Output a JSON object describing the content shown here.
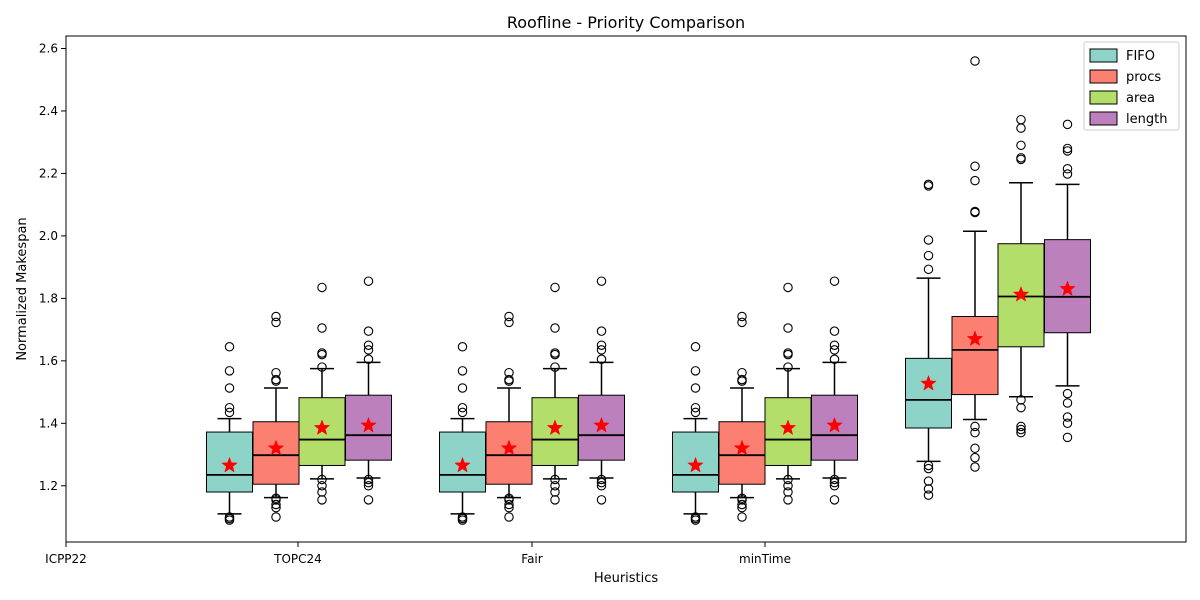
{
  "chart_data": {
    "type": "boxplot",
    "title": "Roofline - Priority Comparison",
    "xlabel": "Heuristics",
    "ylabel": "Normalized Makespan",
    "ylim": [
      1.02,
      2.64
    ],
    "yticks": [
      1.2,
      1.4,
      1.6,
      1.8,
      2.0,
      2.2,
      2.4,
      2.6
    ],
    "xtick_labels": [
      "ICPP22",
      "TOPC24",
      "Fair",
      "minTime"
    ],
    "legend_position": "top-right",
    "grid": false,
    "mean_marker": "red-star",
    "series": [
      {
        "name": "FIFO",
        "color": "#8dd3c7"
      },
      {
        "name": "procs",
        "color": "#fb8072"
      },
      {
        "name": "area",
        "color": "#b3de69"
      },
      {
        "name": "length",
        "color": "#bc80bd"
      }
    ],
    "groups": [
      {
        "boxes": [
          {
            "whisker_low": 1.11,
            "q1": 1.18,
            "median": 1.235,
            "q3": 1.372,
            "whisker_high": 1.415,
            "mean": 1.265,
            "outliers": [
              1.09,
              1.095,
              1.1,
              1.435,
              1.45,
              1.513,
              1.568,
              1.645
            ]
          },
          {
            "whisker_low": 1.162,
            "q1": 1.205,
            "median": 1.298,
            "q3": 1.405,
            "whisker_high": 1.513,
            "mean": 1.32,
            "outliers": [
              1.1,
              1.13,
              1.14,
              1.155,
              1.16,
              1.535,
              1.54,
              1.562,
              1.723,
              1.742
            ]
          },
          {
            "whisker_low": 1.222,
            "q1": 1.265,
            "median": 1.348,
            "q3": 1.482,
            "whisker_high": 1.575,
            "mean": 1.385,
            "outliers": [
              1.155,
              1.18,
              1.2,
              1.22,
              1.58,
              1.62,
              1.625,
              1.705,
              1.835
            ]
          },
          {
            "whisker_low": 1.225,
            "q1": 1.282,
            "median": 1.362,
            "q3": 1.49,
            "whisker_high": 1.595,
            "mean": 1.393,
            "outliers": [
              1.155,
              1.2,
              1.21,
              1.22,
              1.605,
              1.635,
              1.65,
              1.695,
              1.855
            ]
          }
        ]
      },
      {
        "boxes": [
          {
            "whisker_low": 1.11,
            "q1": 1.18,
            "median": 1.235,
            "q3": 1.372,
            "whisker_high": 1.415,
            "mean": 1.265,
            "outliers": [
              1.09,
              1.095,
              1.1,
              1.435,
              1.45,
              1.513,
              1.568,
              1.645
            ]
          },
          {
            "whisker_low": 1.162,
            "q1": 1.205,
            "median": 1.298,
            "q3": 1.405,
            "whisker_high": 1.513,
            "mean": 1.32,
            "outliers": [
              1.1,
              1.13,
              1.14,
              1.155,
              1.16,
              1.535,
              1.54,
              1.562,
              1.723,
              1.742
            ]
          },
          {
            "whisker_low": 1.222,
            "q1": 1.265,
            "median": 1.348,
            "q3": 1.482,
            "whisker_high": 1.575,
            "mean": 1.385,
            "outliers": [
              1.155,
              1.18,
              1.2,
              1.22,
              1.58,
              1.62,
              1.625,
              1.705,
              1.835
            ]
          },
          {
            "whisker_low": 1.225,
            "q1": 1.282,
            "median": 1.362,
            "q3": 1.49,
            "whisker_high": 1.595,
            "mean": 1.393,
            "outliers": [
              1.155,
              1.2,
              1.21,
              1.22,
              1.605,
              1.635,
              1.65,
              1.695,
              1.855
            ]
          }
        ]
      },
      {
        "boxes": [
          {
            "whisker_low": 1.11,
            "q1": 1.18,
            "median": 1.235,
            "q3": 1.372,
            "whisker_high": 1.415,
            "mean": 1.265,
            "outliers": [
              1.09,
              1.095,
              1.1,
              1.435,
              1.45,
              1.513,
              1.568,
              1.645
            ]
          },
          {
            "whisker_low": 1.162,
            "q1": 1.205,
            "median": 1.298,
            "q3": 1.405,
            "whisker_high": 1.513,
            "mean": 1.32,
            "outliers": [
              1.1,
              1.13,
              1.14,
              1.155,
              1.16,
              1.535,
              1.54,
              1.562,
              1.723,
              1.742
            ]
          },
          {
            "whisker_low": 1.222,
            "q1": 1.265,
            "median": 1.348,
            "q3": 1.482,
            "whisker_high": 1.575,
            "mean": 1.385,
            "outliers": [
              1.155,
              1.18,
              1.2,
              1.22,
              1.58,
              1.62,
              1.625,
              1.705,
              1.835
            ]
          },
          {
            "whisker_low": 1.225,
            "q1": 1.282,
            "median": 1.362,
            "q3": 1.49,
            "whisker_high": 1.595,
            "mean": 1.393,
            "outliers": [
              1.155,
              1.2,
              1.21,
              1.22,
              1.605,
              1.635,
              1.65,
              1.695,
              1.855
            ]
          }
        ]
      },
      {
        "boxes": [
          {
            "whisker_low": 1.278,
            "q1": 1.385,
            "median": 1.475,
            "q3": 1.608,
            "whisker_high": 1.865,
            "mean": 1.527,
            "outliers": [
              1.17,
              1.19,
              1.215,
              1.255,
              1.265,
              1.893,
              1.937,
              1.987,
              2.16,
              2.165
            ]
          },
          {
            "whisker_low": 1.412,
            "q1": 1.492,
            "median": 1.635,
            "q3": 1.742,
            "whisker_high": 2.015,
            "mean": 1.67,
            "outliers": [
              1.26,
              1.29,
              1.32,
              1.37,
              1.39,
              2.075,
              2.078,
              2.177,
              2.223,
              2.56
            ]
          },
          {
            "whisker_low": 1.485,
            "q1": 1.645,
            "median": 1.806,
            "q3": 1.975,
            "whisker_high": 2.17,
            "mean": 1.812,
            "outliers": [
              1.37,
              1.38,
              1.39,
              1.45,
              1.475,
              2.245,
              2.25,
              2.29,
              2.345,
              2.372
            ]
          },
          {
            "whisker_low": 1.52,
            "q1": 1.69,
            "median": 1.805,
            "q3": 1.988,
            "whisker_high": 2.165,
            "mean": 1.83,
            "outliers": [
              1.355,
              1.4,
              1.42,
              1.465,
              1.495,
              2.198,
              2.215,
              2.272,
              2.28,
              2.357
            ]
          }
        ]
      }
    ]
  }
}
